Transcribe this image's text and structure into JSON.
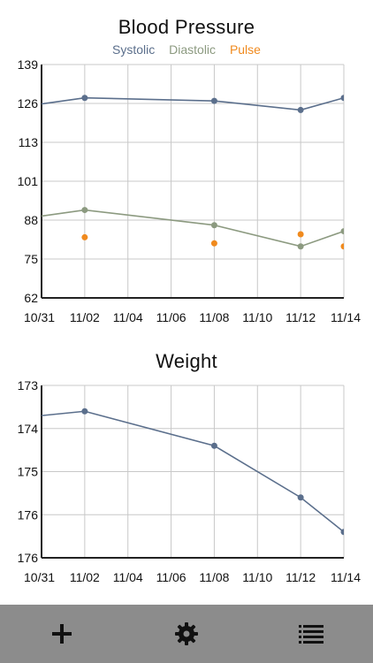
{
  "colors": {
    "systolic": "#5b6f8c",
    "diastolic": "#8c9a80",
    "pulse": "#f08a1e",
    "weight": "#5b6f8c",
    "grid": "#c8c8c8",
    "axis": "#222222",
    "toolbar": "#8c8c8c"
  },
  "blood_pressure": {
    "title": "Blood Pressure",
    "legend": [
      "Systolic",
      "Diastolic",
      "Pulse"
    ]
  },
  "weight": {
    "title": "Weight"
  },
  "toolbar": {
    "icons": [
      "plus-icon",
      "gear-icon",
      "list-icon"
    ]
  },
  "chart_data": [
    {
      "type": "line",
      "title": "Blood Pressure",
      "x_ticks": [
        "10/31",
        "11/02",
        "11/04",
        "11/06",
        "11/08",
        "11/10",
        "11/12",
        "11/14"
      ],
      "y_ticks": [
        62,
        75,
        88,
        101,
        113,
        126,
        139
      ],
      "ylim": [
        62,
        139
      ],
      "xlim": [
        "10/31",
        "11/14"
      ],
      "grid": true,
      "legend_placement": "top-center",
      "series": [
        {
          "name": "Systolic",
          "type": "line",
          "points": [
            {
              "x": "10/31",
              "y": 126
            },
            {
              "x": "11/02",
              "y": 128
            },
            {
              "x": "11/08",
              "y": 127
            },
            {
              "x": "11/12",
              "y": 124
            },
            {
              "x": "11/14",
              "y": 128
            }
          ]
        },
        {
          "name": "Diastolic",
          "type": "line",
          "points": [
            {
              "x": "10/31",
              "y": 89
            },
            {
              "x": "11/02",
              "y": 91
            },
            {
              "x": "11/08",
              "y": 86
            },
            {
              "x": "11/12",
              "y": 79
            },
            {
              "x": "11/14",
              "y": 84
            }
          ]
        },
        {
          "name": "Pulse",
          "type": "scatter",
          "points": [
            {
              "x": "11/02",
              "y": 82
            },
            {
              "x": "11/08",
              "y": 80
            },
            {
              "x": "11/12",
              "y": 83
            },
            {
              "x": "11/14",
              "y": 79
            }
          ]
        }
      ]
    },
    {
      "type": "line",
      "title": "Weight",
      "x_ticks": [
        "10/31",
        "11/02",
        "11/04",
        "11/06",
        "11/08",
        "11/10",
        "11/12",
        "11/14"
      ],
      "y_ticks": [
        "176",
        "176",
        "175",
        "174",
        "173"
      ],
      "ylim": [
        173,
        177
      ],
      "xlim": [
        "10/31",
        "11/14"
      ],
      "grid": true,
      "series": [
        {
          "type": "line",
          "points": [
            {
              "x": "10/31",
              "y": 176.3
            },
            {
              "x": "11/02",
              "y": 176.4
            },
            {
              "x": "11/08",
              "y": 175.6
            },
            {
              "x": "11/12",
              "y": 174.4
            },
            {
              "x": "11/14",
              "y": 173.6
            }
          ]
        }
      ]
    }
  ]
}
